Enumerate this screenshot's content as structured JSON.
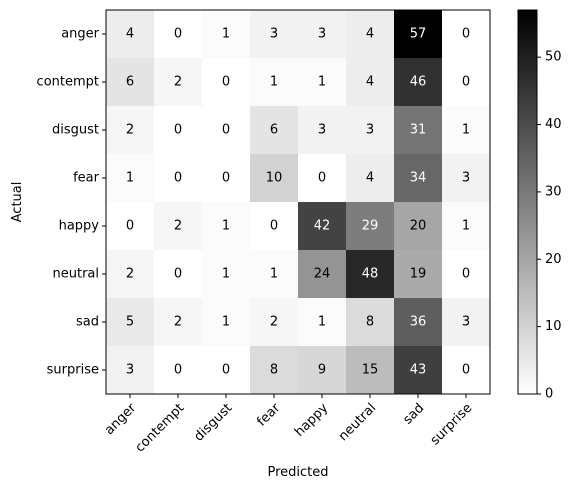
{
  "chart_data": {
    "type": "heatmap",
    "xlabel": "Predicted",
    "ylabel": "Actual",
    "x_categories": [
      "anger",
      "contempt",
      "disgust",
      "fear",
      "happy",
      "neutral",
      "sad",
      "surprise"
    ],
    "y_categories": [
      "anger",
      "contempt",
      "disgust",
      "fear",
      "happy",
      "neutral",
      "sad",
      "surprise"
    ],
    "values": [
      [
        4,
        0,
        1,
        3,
        3,
        4,
        57,
        0
      ],
      [
        6,
        2,
        0,
        1,
        1,
        4,
        46,
        0
      ],
      [
        2,
        0,
        0,
        6,
        3,
        3,
        31,
        1
      ],
      [
        1,
        0,
        0,
        10,
        0,
        4,
        34,
        3
      ],
      [
        0,
        2,
        1,
        0,
        42,
        29,
        20,
        1
      ],
      [
        2,
        0,
        1,
        1,
        24,
        48,
        19,
        0
      ],
      [
        5,
        2,
        1,
        2,
        1,
        8,
        36,
        3
      ],
      [
        3,
        0,
        0,
        8,
        9,
        15,
        43,
        0
      ]
    ],
    "colormap": "greys",
    "color_range": [
      0,
      57
    ],
    "colorbar_ticks": [
      0,
      10,
      20,
      30,
      40,
      50
    ]
  }
}
